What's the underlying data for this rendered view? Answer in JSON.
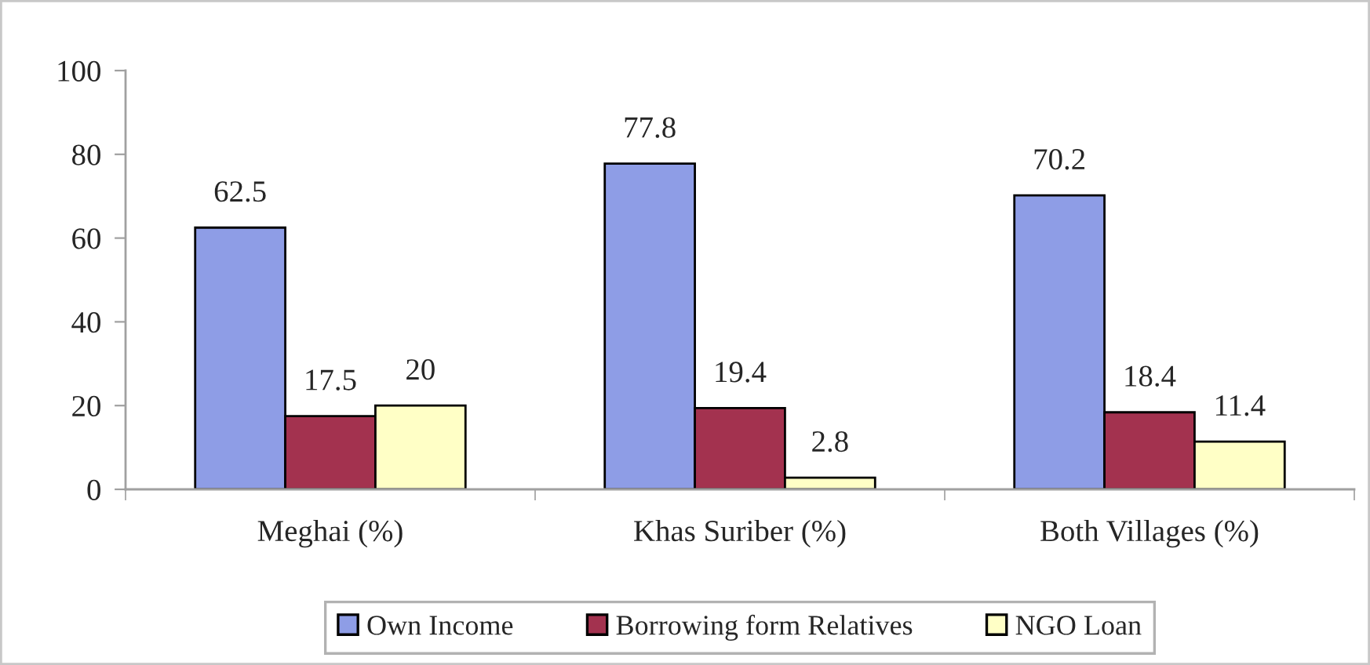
{
  "chart_data": {
    "type": "bar",
    "categories": [
      "Meghai (%)",
      "Khas Suriber (%)",
      "Both Villages (%)"
    ],
    "series": [
      {
        "name": "Own Income",
        "color": "#8e9de6",
        "values": [
          62.5,
          77.8,
          70.2
        ]
      },
      {
        "name": "Borrowing form Relatives",
        "color": "#a3324f",
        "values": [
          17.5,
          19.4,
          18.4
        ]
      },
      {
        "name": "NGO Loan",
        "color": "#ffffc6",
        "values": [
          20,
          2.8,
          11.4
        ]
      }
    ],
    "ylim": [
      0,
      100
    ],
    "yticks": [
      0,
      20,
      40,
      60,
      80,
      100
    ],
    "data_labels": true,
    "legend": "bottom"
  }
}
